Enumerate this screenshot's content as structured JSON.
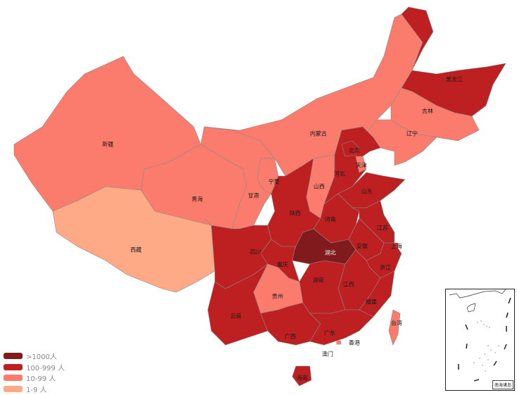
{
  "legend": [
    {
      "label": ">1000人",
      "color": "#811a1c"
    },
    {
      "label": "100-999 人",
      "color": "#be2022"
    },
    {
      "label": "10-99 人",
      "color": "#fb7b6c"
    },
    {
      "label": "1-9 人",
      "color": "#ffaa86"
    }
  ],
  "provinces": [
    {
      "name": "新疆",
      "level": 2
    },
    {
      "name": "西藏",
      "level": 3
    },
    {
      "name": "青海",
      "level": 2
    },
    {
      "name": "甘肃",
      "level": 2
    },
    {
      "name": "内蒙古",
      "level": 2
    },
    {
      "name": "黑龙江",
      "level": 1
    },
    {
      "name": "吉林",
      "level": 2
    },
    {
      "name": "辽宁",
      "level": 2
    },
    {
      "name": "宁夏",
      "level": 2
    },
    {
      "name": "陕西",
      "level": 1
    },
    {
      "name": "山西",
      "level": 2
    },
    {
      "name": "河北",
      "level": 1
    },
    {
      "name": "北京",
      "level": 1
    },
    {
      "name": "天津",
      "level": 2
    },
    {
      "name": "山东",
      "level": 1
    },
    {
      "name": "河南",
      "level": 1
    },
    {
      "name": "湖北",
      "level": 0
    },
    {
      "name": "江苏",
      "level": 1
    },
    {
      "name": "安徽",
      "level": 1
    },
    {
      "name": "上海",
      "level": 1
    },
    {
      "name": "浙江",
      "level": 1
    },
    {
      "name": "江西",
      "level": 1
    },
    {
      "name": "福建",
      "level": 1
    },
    {
      "name": "湖南",
      "level": 1
    },
    {
      "name": "重庆",
      "level": 1
    },
    {
      "name": "四川",
      "level": 1
    },
    {
      "name": "贵州",
      "level": 2
    },
    {
      "name": "云南",
      "level": 1
    },
    {
      "name": "广西",
      "level": 1
    },
    {
      "name": "广东",
      "level": 1
    },
    {
      "name": "海南",
      "level": 1
    },
    {
      "name": "台湾",
      "level": 2
    },
    {
      "name": "香港",
      "level": 2
    },
    {
      "name": "澳门",
      "level": null
    }
  ],
  "inset": {
    "label": "南海诸岛"
  }
}
